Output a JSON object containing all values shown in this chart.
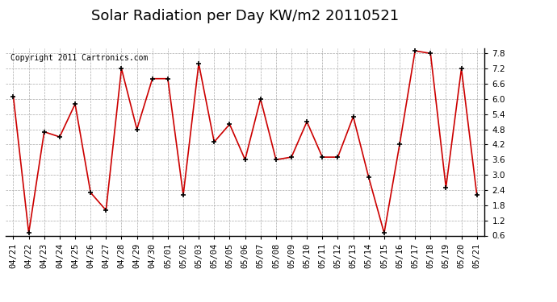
{
  "title": "Solar Radiation per Day KW/m2 20110521",
  "copyright": "Copyright 2011 Cartronics.com",
  "dates": [
    "04/21",
    "04/22",
    "04/23",
    "04/24",
    "04/25",
    "04/26",
    "04/27",
    "04/28",
    "04/29",
    "04/30",
    "05/01",
    "05/02",
    "05/03",
    "05/04",
    "05/05",
    "05/06",
    "05/07",
    "05/08",
    "05/09",
    "05/10",
    "05/11",
    "05/12",
    "05/13",
    "05/14",
    "05/15",
    "05/16",
    "05/17",
    "05/18",
    "05/19",
    "05/20",
    "05/21"
  ],
  "values": [
    6.1,
    0.7,
    4.7,
    4.5,
    5.8,
    2.3,
    1.6,
    7.2,
    4.8,
    6.8,
    6.8,
    2.2,
    7.4,
    4.3,
    5.0,
    3.6,
    6.0,
    3.6,
    3.7,
    5.1,
    3.7,
    3.7,
    5.3,
    2.9,
    0.7,
    4.2,
    7.9,
    7.8,
    2.5,
    7.2,
    2.2
  ],
  "line_color": "#cc0000",
  "marker_color": "#000000",
  "bg_color": "#ffffff",
  "plot_bg_color": "#ffffff",
  "grid_color": "#aaaaaa",
  "title_fontsize": 13,
  "copyright_fontsize": 7,
  "tick_fontsize": 7.5,
  "ylim": [
    0.6,
    8.0
  ],
  "yticks": [
    0.6,
    1.2,
    1.8,
    2.4,
    3.0,
    3.6,
    4.2,
    4.8,
    5.4,
    6.0,
    6.6,
    7.2,
    7.8
  ]
}
